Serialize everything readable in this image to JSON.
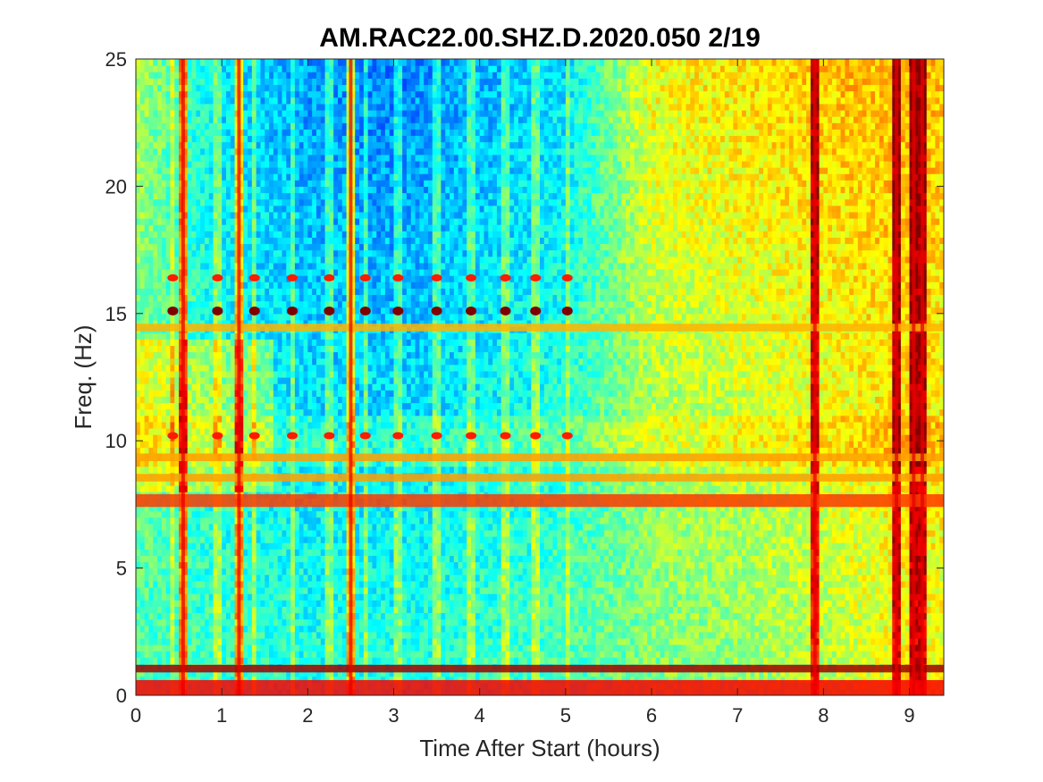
{
  "chart_data": {
    "type": "heatmap",
    "title": "AM.RAC22.00.SHZ.D.2020.050 2/19",
    "xlabel": "Time After Start (hours)",
    "ylabel": "Freq. (Hz)",
    "xlim": [
      0,
      9.4
    ],
    "ylim": [
      0,
      25
    ],
    "x_ticks": [
      0,
      1,
      2,
      3,
      4,
      5,
      6,
      7,
      8,
      9
    ],
    "y_ticks": [
      0,
      5,
      10,
      15,
      20,
      25
    ],
    "x_tick_labels": [
      "0",
      "1",
      "2",
      "3",
      "4",
      "5",
      "6",
      "7",
      "8",
      "9"
    ],
    "y_tick_labels": [
      "0",
      "5",
      "10",
      "15",
      "20",
      "25"
    ],
    "colormap": "jet",
    "grid": false,
    "colors": {
      "low": "#1f8fd6",
      "mid": "#d8e84a",
      "high": "#e8431c",
      "max": "#7a0a00"
    },
    "power_levels": {
      "background_level_by_hour": [
        {
          "x": 0.0,
          "low_freq": 0.45,
          "high_freq": 0.55
        },
        {
          "x": 1.0,
          "low_freq": 0.42,
          "high_freq": 0.35
        },
        {
          "x": 2.0,
          "low_freq": 0.4,
          "high_freq": 0.28
        },
        {
          "x": 3.0,
          "low_freq": 0.4,
          "high_freq": 0.25
        },
        {
          "x": 4.0,
          "low_freq": 0.42,
          "high_freq": 0.3
        },
        {
          "x": 5.0,
          "low_freq": 0.45,
          "high_freq": 0.35
        },
        {
          "x": 6.0,
          "low_freq": 0.5,
          "high_freq": 0.62
        },
        {
          "x": 7.0,
          "low_freq": 0.52,
          "high_freq": 0.65
        },
        {
          "x": 8.0,
          "low_freq": 0.55,
          "high_freq": 0.68
        },
        {
          "x": 9.0,
          "low_freq": 0.62,
          "high_freq": 0.7
        },
        {
          "x": 9.4,
          "low_freq": 0.6,
          "high_freq": 0.68
        }
      ],
      "persistent_bands_hz": [
        {
          "y0": 0.0,
          "y1": 0.6,
          "level": 0.88
        },
        {
          "y0": 0.9,
          "y1": 1.2,
          "level": 0.97
        },
        {
          "y0": 7.4,
          "y1": 7.9,
          "level": 0.82
        },
        {
          "y0": 8.4,
          "y1": 8.7,
          "level": 0.72
        },
        {
          "y0": 14.3,
          "y1": 14.6,
          "level": 0.7
        },
        {
          "y0": 9.2,
          "y1": 9.5,
          "level": 0.72
        }
      ],
      "repeating_events_hours": [
        0.43,
        0.95,
        1.38,
        1.82,
        2.25,
        2.67,
        3.05,
        3.5,
        3.9,
        4.3,
        4.65,
        5.02
      ],
      "event_bands_hz": [
        10.2,
        15.1,
        16.4
      ],
      "broadband_spikes_hours": [
        0.55,
        1.2,
        2.5,
        7.9,
        8.85,
        9.05,
        9.15
      ]
    }
  }
}
